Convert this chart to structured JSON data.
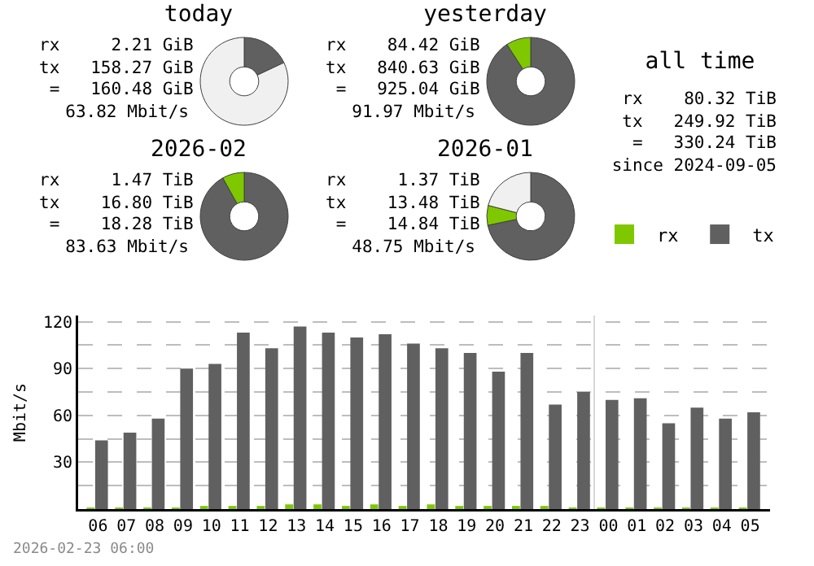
{
  "chart_data": [
    {
      "type": "donut",
      "title": "today",
      "categories": [
        null,
        null
      ],
      "values": [
        18,
        82
      ],
      "colors": [
        "#606060",
        "#f0f0f0"
      ],
      "annotations": [
        "rx     2.21 GiB",
        "tx   158.27 GiB",
        " =   160.48 GiB",
        "63.82 Mbit/s"
      ]
    },
    {
      "type": "donut",
      "title": "yesterday",
      "categories": [
        null,
        null
      ],
      "values": [
        90.9,
        9.1
      ],
      "colors": [
        "#606060",
        "#7fc800"
      ],
      "annotations": [
        "rx    84.42 GiB",
        "tx   840.63 GiB",
        " =   925.04 GiB",
        "91.97 Mbit/s"
      ]
    },
    {
      "type": "donut",
      "title": "2026-02",
      "categories": [
        null,
        null
      ],
      "values": [
        91.9,
        8.1
      ],
      "colors": [
        "#606060",
        "#7fc800"
      ],
      "annotations": [
        "rx     1.47 TiB",
        "tx    16.80 TiB",
        " =    18.28 TiB",
        "83.63 Mbit/s"
      ]
    },
    {
      "type": "donut",
      "title": "2026-01",
      "categories": [
        null,
        null,
        null
      ],
      "values": [
        71.7,
        7.3,
        21
      ],
      "colors": [
        "#606060",
        "#7fc800",
        "#f0f0f0"
      ],
      "annotations": [
        "rx     1.37 TiB",
        "tx    13.48 TiB",
        " =    14.84 TiB",
        "48.75 Mbit/s"
      ]
    },
    {
      "type": "other",
      "title": "all time",
      "annotations": [
        "rx    80.32 TiB",
        "tx   249.92 TiB",
        " =   330.24 TiB",
        "since 2024-09-05"
      ]
    },
    {
      "type": "bar",
      "categories": [
        "06",
        "07",
        "08",
        "09",
        "10",
        "11",
        "12",
        "13",
        "14",
        "15",
        "16",
        "17",
        "18",
        "19",
        "20",
        "21",
        "22",
        "23",
        "00",
        "01",
        "02",
        "03",
        "04",
        "05"
      ],
      "series": [
        {
          "name": "rx",
          "color": "#7fc800",
          "values": [
            1,
            1,
            1,
            1,
            2,
            2,
            2,
            3,
            3,
            2,
            3,
            2,
            3,
            2,
            2,
            2,
            2,
            1,
            1,
            1,
            1,
            1,
            1,
            1
          ]
        },
        {
          "name": "tx",
          "color": "#606060",
          "values": [
            44,
            49,
            58,
            90,
            93,
            113,
            103,
            117,
            113,
            110,
            112,
            106,
            103,
            100,
            88,
            100,
            67,
            75,
            70,
            71,
            55,
            65,
            58,
            62
          ]
        }
      ],
      "ylabel": "Mbit/s",
      "ylim": [
        0,
        124
      ],
      "yticks": [
        {
          "value": 15,
          "label": null
        },
        30,
        {
          "value": 45,
          "label": null
        },
        60,
        {
          "value": 75,
          "label": null
        },
        90,
        {
          "value": 105,
          "label": null
        },
        120
      ],
      "grid": "y",
      "legend": "top right",
      "ref_lines": [
        {
          "axis": "x",
          "value": "00",
          "color": "#d8d8d8"
        }
      ],
      "annotations": [
        "2026-02-23 06:00"
      ]
    }
  ]
}
